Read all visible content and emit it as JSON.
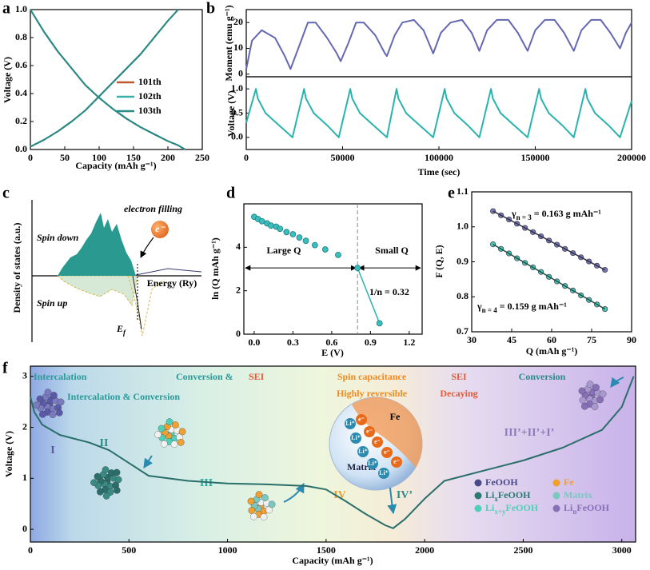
{
  "chart_data": [
    {
      "type": "line",
      "panel": "a",
      "xlabel": "Capacity (mAh g⁻¹)",
      "ylabel": "Voltage (V)",
      "xlim": [
        0,
        250
      ],
      "xticks": [
        0,
        50,
        100,
        150,
        200,
        250
      ],
      "ylim": [
        0,
        1
      ],
      "yticks": [
        {
          "value": 0,
          "label": "0.0"
        },
        0.2,
        0.4,
        0.6,
        0.8,
        {
          "value": 1,
          "label": "1.0"
        }
      ],
      "legend": "center right",
      "series": [
        {
          "name": "101th",
          "color": "#c2562f",
          "x": [
            0,
            20,
            40,
            60,
            80,
            100,
            120,
            140,
            160,
            180,
            200,
            215,
            225,
            null,
            0,
            20,
            40,
            60,
            80,
            100,
            120,
            140,
            160,
            180,
            200,
            215
          ],
          "values": [
            1.0,
            0.84,
            0.7,
            0.58,
            0.46,
            0.37,
            0.29,
            0.22,
            0.16,
            0.11,
            0.06,
            0.03,
            0.0,
            null,
            0.02,
            0.07,
            0.13,
            0.2,
            0.28,
            0.38,
            0.48,
            0.58,
            0.68,
            0.8,
            0.92,
            1.0
          ]
        },
        {
          "name": "102th",
          "color": "#38b0a8",
          "x": [
            0,
            20,
            40,
            60,
            80,
            100,
            120,
            140,
            160,
            180,
            200,
            215,
            225,
            null,
            0,
            20,
            40,
            60,
            80,
            100,
            120,
            140,
            160,
            180,
            200,
            215
          ],
          "values": [
            1.0,
            0.84,
            0.7,
            0.58,
            0.46,
            0.37,
            0.29,
            0.22,
            0.16,
            0.11,
            0.06,
            0.03,
            0.0,
            null,
            0.02,
            0.07,
            0.13,
            0.2,
            0.28,
            0.38,
            0.48,
            0.58,
            0.68,
            0.8,
            0.92,
            1.0
          ]
        },
        {
          "name": "103th",
          "color": "#2a8a86",
          "x": [
            0,
            20,
            40,
            60,
            80,
            100,
            120,
            140,
            160,
            180,
            200,
            215,
            225,
            null,
            0,
            20,
            40,
            60,
            80,
            100,
            120,
            140,
            160,
            180,
            200,
            215
          ],
          "values": [
            1.0,
            0.84,
            0.7,
            0.58,
            0.46,
            0.37,
            0.29,
            0.22,
            0.16,
            0.11,
            0.06,
            0.03,
            0.0,
            null,
            0.02,
            0.07,
            0.13,
            0.2,
            0.28,
            0.38,
            0.48,
            0.58,
            0.68,
            0.8,
            0.92,
            1.0
          ]
        }
      ]
    },
    {
      "type": "line",
      "panel": "b",
      "ylabel": "Moment (emu g⁻¹)",
      "xlim": [
        0,
        200000
      ],
      "ylim": [
        -1,
        25
      ],
      "yticks": [
        0,
        10,
        20
      ],
      "series": [
        {
          "color": "#6468b0",
          "x": [
            0,
            3000,
            8000,
            15000,
            20000,
            23000,
            27000,
            32000,
            36000,
            42000,
            47000,
            49000,
            53000,
            57000,
            61000,
            67000,
            72000,
            73000,
            77000,
            81000,
            87000,
            92000,
            97000,
            101000,
            106000,
            112000,
            117000,
            121000,
            125000,
            130000,
            136000,
            141000,
            146000,
            150000,
            155000,
            160000,
            165000,
            170000,
            174000,
            179000,
            184000,
            189000,
            194000,
            197000,
            200000
          ],
          "values": [
            2,
            13,
            17,
            14,
            7,
            2,
            10,
            20,
            20,
            14,
            8,
            5,
            12,
            20,
            20,
            15,
            8,
            7,
            15,
            20,
            21,
            17,
            8,
            16,
            20,
            21,
            16,
            9,
            17,
            21,
            21,
            16,
            9,
            17,
            21,
            21,
            16,
            9,
            17,
            21,
            21,
            16,
            10,
            16,
            20
          ]
        }
      ]
    },
    {
      "type": "line",
      "ylabel": "Voltage (V)",
      "xlabel": "Time (sec)",
      "xlim": [
        0,
        200000
      ],
      "xticks": [
        0,
        50000,
        100000,
        150000,
        200000
      ],
      "ylim": [
        -0.25,
        1.25
      ],
      "yticks": [
        {
          "value": 0,
          "label": "0.0"
        },
        0.5,
        {
          "value": 1,
          "label": "1.0"
        }
      ],
      "series": [
        {
          "color": "#2ab3ad",
          "x": [
            0,
            5000,
            6000,
            10000,
            17000,
            24000,
            30000,
            31000,
            35000,
            42000,
            48000,
            54000,
            55000,
            59000,
            66000,
            73000,
            78000,
            79000,
            83000,
            90000,
            97000,
            103000,
            104000,
            108000,
            115000,
            121000,
            127000,
            128000,
            132000,
            139000,
            146000,
            152000,
            153000,
            157000,
            164000,
            170000,
            176000,
            177000,
            181000,
            188000,
            194000,
            200000
          ],
          "values": [
            0.3,
            1.0,
            0.8,
            0.5,
            0.25,
            0.0,
            1.0,
            0.8,
            0.5,
            0.25,
            0.0,
            1.0,
            0.8,
            0.5,
            0.25,
            0.0,
            1.0,
            0.8,
            0.5,
            0.25,
            0.0,
            1.0,
            0.8,
            0.5,
            0.25,
            0.0,
            1.0,
            0.8,
            0.5,
            0.25,
            0.0,
            1.0,
            0.8,
            0.5,
            0.25,
            0.0,
            1.0,
            0.8,
            0.5,
            0.25,
            0.0,
            0.75
          ]
        }
      ]
    },
    {
      "type": "dos",
      "panel": "c",
      "ylabel": "Density of states (a.u.)",
      "xlabel": "Energy (Ry)",
      "annotations": [
        "Spin down",
        "electron filling",
        "Spin up",
        "e⁻"
      ],
      "fermi": {
        "parts": [
          "E",
          "f"
        ]
      }
    },
    {
      "type": "scatter",
      "panel": "d",
      "xlabel": "E (V)",
      "ylabel": "ln (Q mAh g⁻¹)",
      "xlim": [
        -0.08,
        1.3
      ],
      "xticks": [
        {
          "value": 0,
          "label": "0.0"
        },
        0.3,
        0.6,
        0.9,
        1.2
      ],
      "ylim": [
        0,
        6
      ],
      "yticks": [
        0,
        2,
        4
      ],
      "divider_x": 0.8,
      "annotations": [
        "Large Q",
        "Small Q",
        "1/n = 0.32"
      ],
      "series": [
        {
          "color": "#3bbdbd",
          "x": [
            0,
            0.03,
            0.06,
            0.1,
            0.13,
            0.17,
            0.2,
            0.25,
            0.3,
            0.35,
            0.4,
            0.47,
            0.55,
            0.65,
            0.8,
            0.97
          ],
          "values": [
            5.4,
            5.3,
            5.2,
            5.1,
            5.0,
            4.95,
            4.85,
            4.7,
            4.6,
            4.45,
            4.3,
            4.1,
            3.9,
            3.65,
            3.05,
            0.5
          ]
        },
        {
          "color": "#2ab3ad",
          "x": [
            0.8,
            0.97
          ],
          "values": [
            3.05,
            0.5
          ],
          "style": "fit"
        }
      ]
    },
    {
      "type": "scatter",
      "panel": "e",
      "xlabel": "Q (mAh g⁻¹)",
      "ylabel": "F (Q, E)",
      "xlim": [
        30,
        90
      ],
      "xticks": [
        30,
        45,
        60,
        75,
        90
      ],
      "ylim": [
        0.7,
        1.1
      ],
      "yticks": [
        0.7,
        0.8,
        0.9,
        {
          "value": 1,
          "label": "1.0"
        },
        1.1
      ],
      "annotations": [
        {
          "parts": [
            "γ",
            "n = 3",
            " = 0.163 g mAh⁻¹"
          ]
        },
        {
          "parts": [
            "γ",
            "n = 4",
            " = 0.159 g mAh⁻¹"
          ]
        }
      ],
      "series": [
        {
          "color": "#7a7ab8",
          "line_color": "#2c2c4c",
          "x": [
            38,
            41,
            44,
            47,
            50,
            53,
            56,
            59,
            62,
            65,
            68,
            71,
            74,
            77,
            80
          ],
          "values": [
            1.045,
            1.033,
            1.021,
            1.009,
            0.997,
            0.985,
            0.973,
            0.961,
            0.949,
            0.937,
            0.925,
            0.913,
            0.901,
            0.889,
            0.877
          ]
        },
        {
          "color": "#4cc8b8",
          "line_color": "#1e4e4a",
          "x": [
            38,
            41,
            44,
            47,
            50,
            53,
            56,
            59,
            62,
            65,
            68,
            71,
            74,
            77,
            80
          ],
          "values": [
            0.95,
            0.937,
            0.924,
            0.91,
            0.897,
            0.884,
            0.871,
            0.857,
            0.844,
            0.831,
            0.818,
            0.804,
            0.791,
            0.778,
            0.765
          ]
        }
      ]
    },
    {
      "type": "line",
      "panel": "f",
      "xlabel": "Capacity (mAh g⁻¹)",
      "ylabel": "Voltage (V)",
      "xlim": [
        0,
        3070
      ],
      "xticks": [
        0,
        500,
        1000,
        1500,
        2000,
        2500,
        3000
      ],
      "ylim": [
        -0.25,
        3.2
      ],
      "yticks": [
        0,
        1,
        2,
        3
      ],
      "series": [
        {
          "color": "#2a6e6a",
          "x": [
            0,
            20,
            60,
            150,
            300,
            400,
            500,
            600,
            800,
            1000,
            1200,
            1400,
            1500,
            1600,
            1700,
            1800,
            1840,
            1900,
            2000,
            2100,
            2300,
            2500,
            2700,
            2900,
            3000,
            3060
          ],
          "values": [
            2.6,
            2.3,
            2.05,
            1.85,
            1.7,
            1.55,
            1.3,
            1.05,
            0.95,
            0.9,
            0.88,
            0.85,
            0.78,
            0.55,
            0.3,
            0.08,
            0.02,
            0.2,
            0.6,
            0.95,
            1.15,
            1.35,
            1.6,
            1.95,
            2.4,
            3.0
          ]
        }
      ],
      "annotations": [
        {
          "text": "Intercalation",
          "color": "#2a9a98"
        },
        {
          "text": "Intercalation & Conversion",
          "color": "#2a9a98"
        },
        {
          "text": "Conversion &",
          "color": "#2a9a98"
        },
        {
          "text": "SEI",
          "color": "#e05a3a"
        },
        {
          "text": "Spin capacitance",
          "color": "#f08a20"
        },
        {
          "text": "Highly reversible",
          "color": "#f08a20"
        },
        {
          "text": "SEI",
          "color": "#e05a3a"
        },
        {
          "text": "Decaying",
          "color": "#e05a3a"
        },
        {
          "text": "Conversion",
          "color": "#2a8a88"
        },
        {
          "text": "I",
          "color": "#5a5aa0"
        },
        {
          "text": "II",
          "color": "#2a8a88"
        },
        {
          "text": "III",
          "color": "#2aa8a0"
        },
        {
          "text": "IV",
          "color": "#f0a030"
        },
        {
          "text": "IV’",
          "color": "#2a8a88"
        },
        {
          "text": "III’+II’+I’",
          "color": "#8a7ab8"
        }
      ],
      "legend_items": [
        {
          "parts": [
            "FeOOH"
          ],
          "color": "#4a4a88"
        },
        {
          "parts": [
            "Fe"
          ],
          "color": "#f0a030"
        },
        {
          "parts": [
            "Li",
            "x",
            "FeOOH"
          ],
          "color": "#2a7a70"
        },
        {
          "parts": [
            "Matrix"
          ],
          "color": "#7ac8c0"
        },
        {
          "parts": [
            "Li",
            "x+y",
            "FeOOH"
          ],
          "color": "#50d0b8"
        },
        {
          "parts": [
            "Li",
            "n",
            "FeOOH"
          ],
          "color": "#8870b8"
        }
      ],
      "inset": {
        "labels": [
          "Fe",
          "Matrix"
        ],
        "ion": "Li⁺",
        "electron": "e⁻"
      }
    }
  ]
}
